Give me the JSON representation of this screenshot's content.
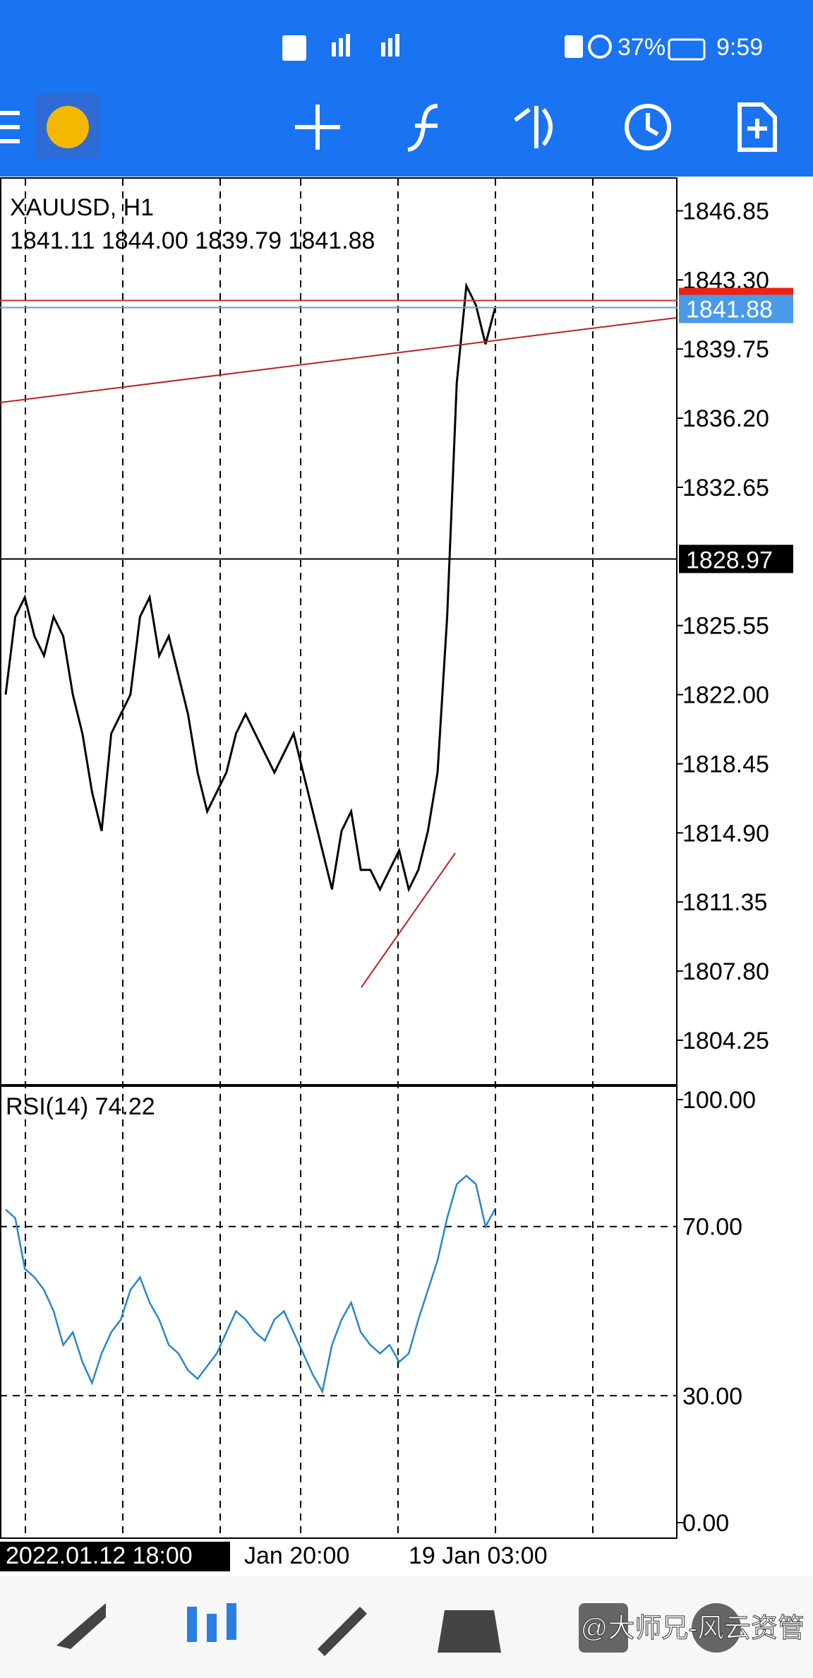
{
  "status_bar": {
    "battery": "37%",
    "time": "9:59"
  },
  "symbol": "XAUUSD, H1",
  "ohlc": "1841.11 1844.00 1839.79 1841.88",
  "price_chart": {
    "ylim": [
      1802,
      1848.5
    ],
    "yticks": [
      1846.85,
      {
        "value": 1843.3,
        "label": "1843.30"
      },
      1839.75,
      {
        "value": 1836.2,
        "label": "1836.20"
      },
      1832.65,
      1825.55,
      {
        "value": 1822,
        "label": "1822.00"
      },
      1818.45,
      {
        "value": 1814.9,
        "label": "1814.90"
      },
      1811.35,
      {
        "value": 1807.8,
        "label": "1807.80"
      },
      1804.25
    ],
    "close": [
      1822,
      1826,
      1827,
      1825,
      1824,
      1826,
      1825,
      1822,
      1820,
      1817,
      1815,
      1820,
      1821,
      1822,
      1826,
      1827,
      1824,
      1825,
      1823,
      1821,
      1818,
      1816,
      1817,
      1818,
      1820,
      1821,
      1820,
      1819,
      1818,
      1819,
      1820,
      1818,
      1816,
      1814,
      1812,
      1815,
      1816,
      1813,
      1813,
      1812,
      1813,
      1814,
      1812,
      1813,
      1815,
      1818,
      1826,
      1838,
      1843,
      1842,
      1840,
      1841.88
    ],
    "bid": 1841.88,
    "level": 1828.97
  },
  "rsi": {
    "label": "RSI(14) 74.22",
    "ylim": [
      0,
      100
    ],
    "yticks": [
      {
        "value": 100,
        "label": "100.00"
      },
      {
        "value": 70,
        "label": "70.00"
      },
      {
        "value": 30,
        "label": "30.00"
      },
      {
        "value": 0,
        "label": "0.00"
      }
    ],
    "values": [
      74,
      72,
      60,
      58,
      55,
      50,
      42,
      45,
      38,
      33,
      40,
      45,
      48,
      55,
      58,
      52,
      48,
      42,
      40,
      36,
      34,
      37,
      40,
      45,
      50,
      48,
      45,
      43,
      48,
      50,
      45,
      40,
      35,
      31,
      42,
      48,
      52,
      45,
      42,
      40,
      42,
      38,
      40,
      48,
      55,
      62,
      72,
      80,
      82,
      80,
      70,
      74.22
    ]
  },
  "time_axis": [
    "2022.01.12 18:00",
    "Jan 20:00",
    "19 Jan 03:00"
  ],
  "watermark": "@大师兄-风云资管"
}
